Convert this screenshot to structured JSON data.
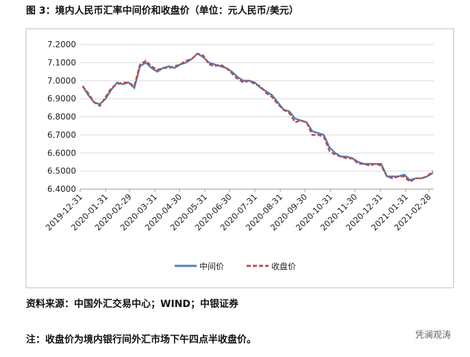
{
  "chart_data": {
    "type": "line",
    "title": "图 3：境内人民币汇率中间价和收盘价（单位：元人民币/美元）",
    "x": [
      "2020-01-03",
      "2020-01-10",
      "2020-01-17",
      "2020-01-24",
      "2020-01-31",
      "2020-02-07",
      "2020-02-14",
      "2020-02-21",
      "2020-02-28",
      "2020-03-06",
      "2020-03-13",
      "2020-03-20",
      "2020-03-27",
      "2020-04-03",
      "2020-04-10",
      "2020-04-17",
      "2020-04-24",
      "2020-05-01",
      "2020-05-08",
      "2020-05-15",
      "2020-05-22",
      "2020-05-29",
      "2020-06-05",
      "2020-06-12",
      "2020-06-19",
      "2020-06-26",
      "2020-07-03",
      "2020-07-10",
      "2020-07-17",
      "2020-07-24",
      "2020-07-31",
      "2020-08-07",
      "2020-08-14",
      "2020-08-21",
      "2020-08-28",
      "2020-09-04",
      "2020-09-11",
      "2020-09-18",
      "2020-09-25",
      "2020-10-02",
      "2020-10-09",
      "2020-10-16",
      "2020-10-23",
      "2020-10-30",
      "2020-11-06",
      "2020-11-13",
      "2020-11-20",
      "2020-11-27",
      "2020-12-04",
      "2020-12-11",
      "2020-12-18",
      "2020-12-25",
      "2021-01-01",
      "2021-01-08",
      "2021-01-15",
      "2021-01-22",
      "2021-01-29",
      "2021-02-05",
      "2021-02-12",
      "2021-02-19",
      "2021-02-26",
      "2021-03-05"
    ],
    "series": [
      {
        "name": "中间价",
        "color": "#4a7ebb",
        "dash": false,
        "values": [
          6.97,
          6.92,
          6.88,
          6.87,
          6.9,
          6.95,
          6.99,
          6.98,
          6.99,
          6.96,
          7.08,
          7.1,
          7.07,
          7.05,
          7.07,
          7.08,
          7.07,
          7.09,
          7.1,
          7.12,
          7.15,
          7.13,
          7.1,
          7.09,
          7.08,
          7.07,
          7.05,
          7.02,
          7.0,
          7.0,
          6.99,
          6.96,
          6.94,
          6.92,
          6.88,
          6.84,
          6.83,
          6.79,
          6.78,
          6.77,
          6.72,
          6.71,
          6.7,
          6.63,
          6.6,
          6.58,
          6.58,
          6.57,
          6.55,
          6.54,
          6.54,
          6.54,
          6.54,
          6.47,
          6.47,
          6.47,
          6.48,
          6.45,
          6.46,
          6.46,
          6.47,
          6.49
        ]
      },
      {
        "name": "收盘价",
        "color": "#be4b48",
        "dash": true,
        "values": [
          6.97,
          6.93,
          6.88,
          6.86,
          6.91,
          6.96,
          6.98,
          6.99,
          6.99,
          6.97,
          7.09,
          7.11,
          7.08,
          7.06,
          7.07,
          7.07,
          7.08,
          7.09,
          7.11,
          7.12,
          7.15,
          7.14,
          7.09,
          7.08,
          7.09,
          7.07,
          7.04,
          7.01,
          6.99,
          7.0,
          6.98,
          6.97,
          6.93,
          6.91,
          6.87,
          6.84,
          6.82,
          6.77,
          6.78,
          6.77,
          6.7,
          6.7,
          6.69,
          6.61,
          6.59,
          6.58,
          6.57,
          6.57,
          6.54,
          6.54,
          6.53,
          6.54,
          6.53,
          6.47,
          6.46,
          6.47,
          6.47,
          6.44,
          6.46,
          6.46,
          6.47,
          6.5
        ]
      }
    ],
    "xlim": [
      "2019-12-31",
      "2021-03-06"
    ],
    "xticks": [
      "2019-12-31",
      "2020-01-31",
      "2020-02-29",
      "2020-03-31",
      "2020-04-30",
      "2020-05-31",
      "2020-06-30",
      "2020-07-31",
      "2020-08-31",
      "2020-09-30",
      "2020-10-31",
      "2020-11-30",
      "2020-12-31",
      "2021-01-31",
      "2021-02-28"
    ],
    "ylim": [
      6.4,
      7.2
    ],
    "yticks": [
      {
        "value": 6.4,
        "label": "6.4000"
      },
      {
        "value": 6.5,
        "label": "6.5000"
      },
      {
        "value": 6.6,
        "label": "6.6000"
      },
      {
        "value": 6.7,
        "label": "6.7000"
      },
      {
        "value": 6.8,
        "label": "6.8000"
      },
      {
        "value": 6.9,
        "label": "6.9000"
      },
      {
        "value": 7.0,
        "label": "7.0000"
      },
      {
        "value": 7.1,
        "label": "7.1000"
      },
      {
        "value": 7.2,
        "label": "7.2000"
      }
    ],
    "grid": true,
    "legend": "bottom"
  },
  "source": "资料来源：中国外汇交易中心；WIND；中银证券",
  "note": "注：收盘价为境内银行间外汇市场下午四点半收盘价。",
  "watermark": "凭澜观涛"
}
